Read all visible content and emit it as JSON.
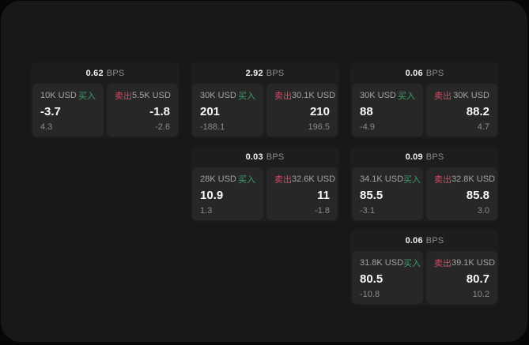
{
  "labels": {
    "bps_unit": "BPS",
    "buy": "买入",
    "sell": "卖出"
  },
  "colors": {
    "buy": "#3f9e6a",
    "sell": "#cf4d66"
  },
  "cards": [
    {
      "row": 1,
      "col": 1,
      "bps": "0.62",
      "buy": {
        "amount": "10K USD",
        "value": "-3.7",
        "sub": "4.3"
      },
      "sell": {
        "amount": "5.5K USD",
        "value": "-1.8",
        "sub": "-2.6"
      }
    },
    {
      "row": 1,
      "col": 2,
      "bps": "2.92",
      "buy": {
        "amount": "30K USD",
        "value": "201",
        "sub": "-188.1"
      },
      "sell": {
        "amount": "30.1K USD",
        "value": "210",
        "sub": "196.5"
      }
    },
    {
      "row": 1,
      "col": 3,
      "bps": "0.06",
      "buy": {
        "amount": "30K USD",
        "value": "88",
        "sub": "-4.9"
      },
      "sell": {
        "amount": "30K USD",
        "value": "88.2",
        "sub": "4.7"
      }
    },
    {
      "row": 2,
      "col": 2,
      "bps": "0.03",
      "buy": {
        "amount": "28K USD",
        "value": "10.9",
        "sub": "1.3"
      },
      "sell": {
        "amount": "32.6K USD",
        "value": "11",
        "sub": "-1.8"
      }
    },
    {
      "row": 2,
      "col": 3,
      "bps": "0.09",
      "buy": {
        "amount": "34.1K USD",
        "value": "85.5",
        "sub": "-3.1"
      },
      "sell": {
        "amount": "32.8K USD",
        "value": "85.8",
        "sub": "3.0"
      }
    },
    {
      "row": 3,
      "col": 3,
      "bps": "0.06",
      "buy": {
        "amount": "31.8K USD",
        "value": "80.5",
        "sub": "-10.8"
      },
      "sell": {
        "amount": "39.1K USD",
        "value": "80.7",
        "sub": "10.2"
      }
    }
  ]
}
